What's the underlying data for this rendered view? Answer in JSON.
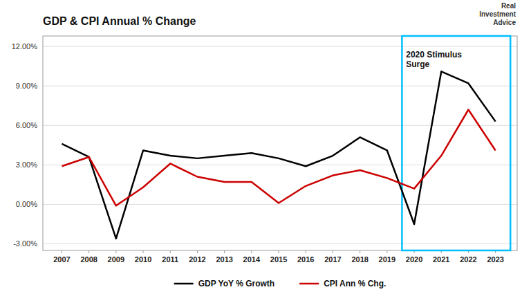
{
  "chart_data": {
    "type": "line",
    "title": "GDP & CPI Annual % Change",
    "x": [
      2007,
      2008,
      2009,
      2010,
      2011,
      2012,
      2013,
      2014,
      2015,
      2016,
      2017,
      2018,
      2019,
      2020,
      2021,
      2022,
      2023
    ],
    "series": [
      {
        "name": "GDP YoY % Growth",
        "color": "#000000",
        "values": [
          4.6,
          3.6,
          -2.6,
          4.1,
          3.7,
          3.5,
          3.7,
          3.9,
          3.5,
          2.9,
          3.7,
          5.1,
          4.1,
          -1.5,
          10.1,
          9.2,
          6.3
        ]
      },
      {
        "name": "CPI Ann % Chg.",
        "color": "#cc0000",
        "values": [
          2.9,
          3.6,
          -0.1,
          1.3,
          3.1,
          2.1,
          1.7,
          1.7,
          0.1,
          1.4,
          2.2,
          2.6,
          2.0,
          1.2,
          3.7,
          7.2,
          4.1
        ]
      }
    ],
    "xlim": [
      2006.3,
      2023.8
    ],
    "xticks": [
      2007,
      2008,
      2009,
      2010,
      2011,
      2012,
      2013,
      2014,
      2015,
      2016,
      2017,
      2018,
      2019,
      2020,
      2021,
      2022,
      2023
    ],
    "ylim": [
      -3.5,
      12.8
    ],
    "yticks": [
      {
        "value": -3.0,
        "label": "-3.00%"
      },
      {
        "value": 0.0,
        "label": "0.00%"
      },
      {
        "value": 3.0,
        "label": "3.00%"
      },
      {
        "value": 6.0,
        "label": "6.00%"
      },
      {
        "value": 9.0,
        "label": "9.00%"
      },
      {
        "value": 12.0,
        "label": "12.00%"
      }
    ],
    "grid": true,
    "legend": "bottom",
    "highlight": {
      "start": 2019.55,
      "end": 2023.55,
      "color": "#00bfff"
    },
    "annotations": [
      {
        "text": "2020 Stimulus\nSurge",
        "x": 2019.7,
        "y": 11.8
      }
    ],
    "logo": "Real\nInvestment\nAdvice"
  }
}
